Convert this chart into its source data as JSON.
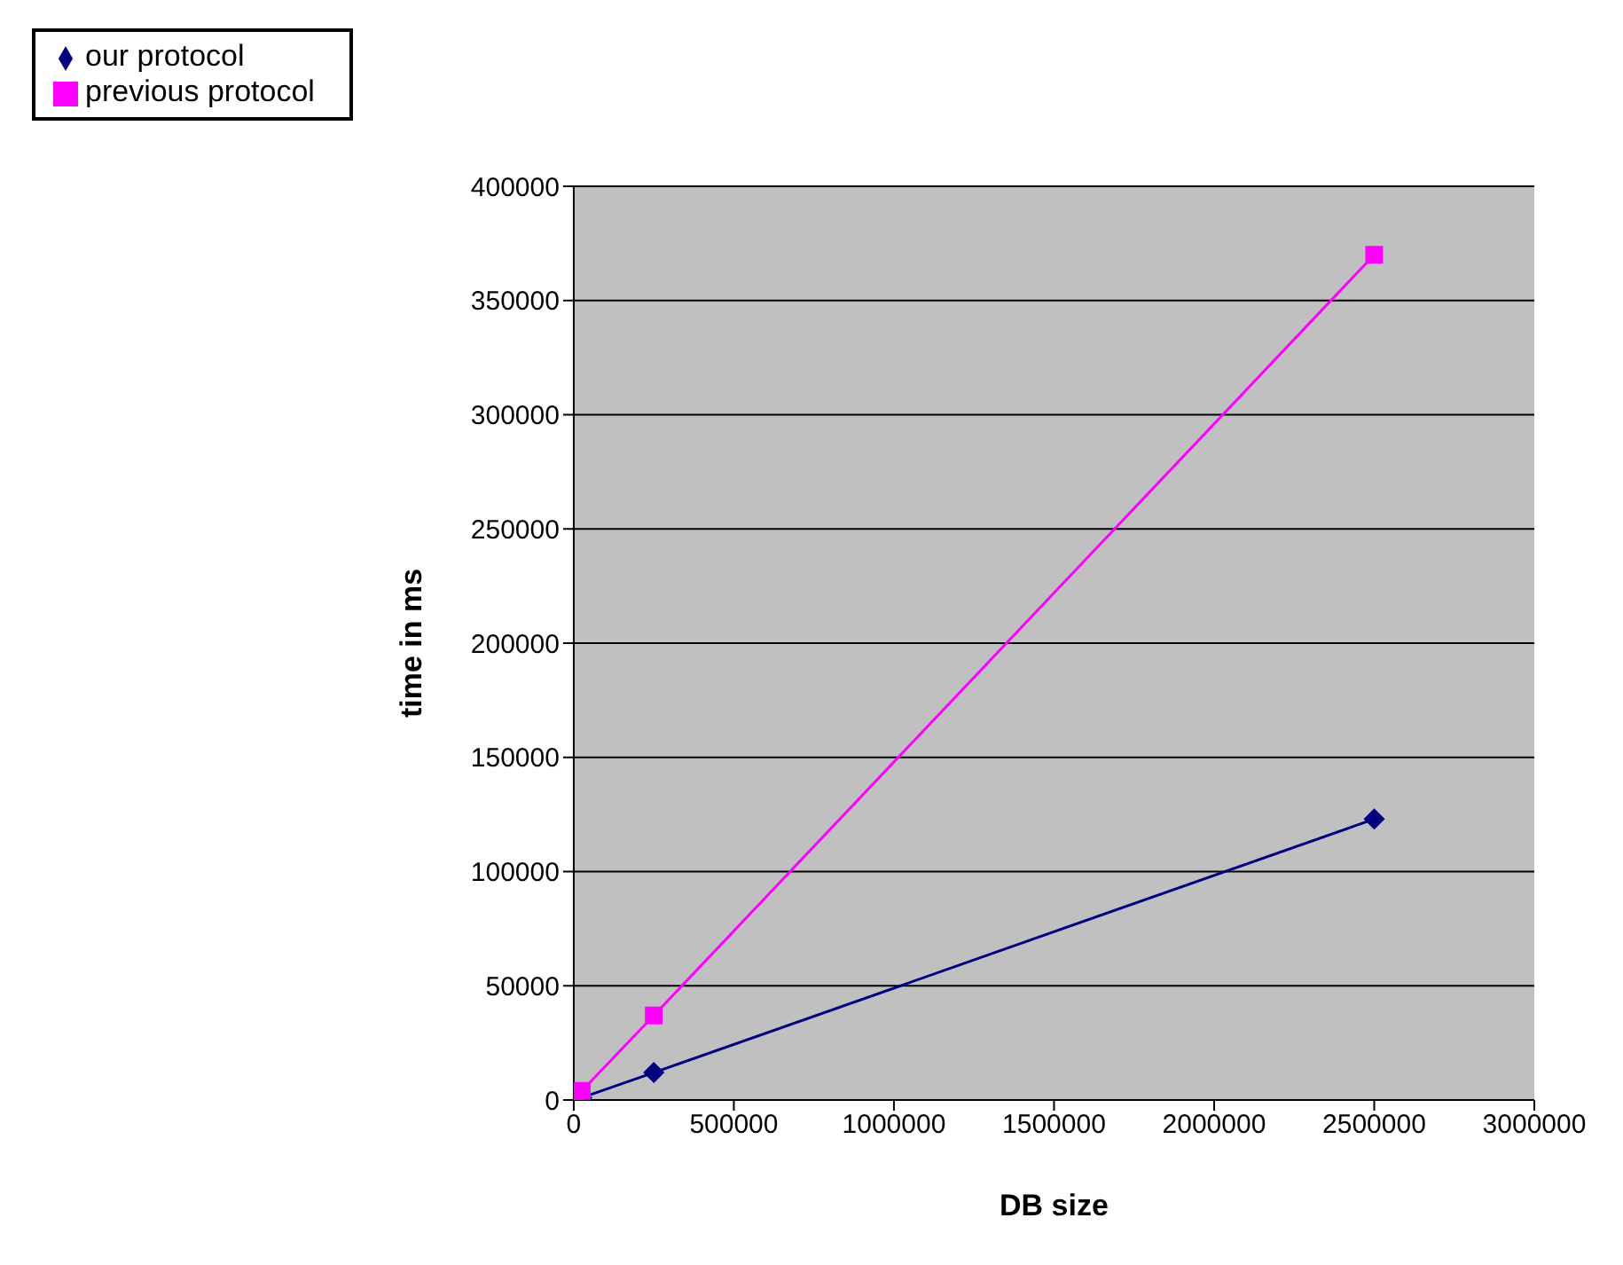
{
  "chart_data": {
    "type": "line",
    "xlabel": "DB size",
    "ylabel": "time in ms",
    "x": [
      2500,
      25000,
      250000,
      2500000
    ],
    "series": [
      {
        "name": "our protocol",
        "color": "#000080",
        "marker": "diamond",
        "values": [
          0,
          1000,
          12000,
          123000
        ]
      },
      {
        "name": "previous protocol",
        "color": "#ff00ff",
        "marker": "square",
        "values": [
          0,
          4000,
          37000,
          370000
        ]
      }
    ],
    "xlim": [
      0,
      3000000
    ],
    "xticks": [
      0,
      500000,
      1000000,
      1500000,
      2000000,
      2500000,
      3000000
    ],
    "ylim": [
      0,
      400000
    ],
    "yticks": [
      0,
      50000,
      100000,
      150000,
      200000,
      250000,
      300000,
      350000,
      400000
    ],
    "grid": "y",
    "legend": "top left"
  }
}
